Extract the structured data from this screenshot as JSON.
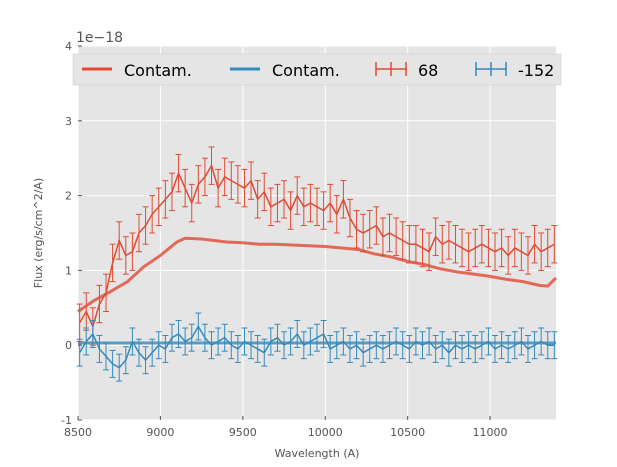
{
  "chart_data": {
    "type": "line",
    "title": "",
    "xlabel": "Wavelength (A)",
    "ylabel": "Flux (erg/s/cm^2/A)",
    "offset_text": "1e−18",
    "xlim": [
      8500,
      11400
    ],
    "ylim": [
      -1,
      4
    ],
    "x_ticks": [
      8500,
      9000,
      9500,
      10000,
      10500,
      11000
    ],
    "y_ticks": [
      -1,
      0,
      1,
      2,
      3,
      4
    ],
    "grid": true,
    "legend_position": "top",
    "colors": {
      "red": "#e24a33",
      "blue": "#348abd",
      "background": "#e5e5e5",
      "grid": "#ffffff"
    },
    "series": [
      {
        "name": "Contam.",
        "kind": "line",
        "color": "#e24a33",
        "x": [
          8500,
          8600,
          8700,
          8800,
          8900,
          9000,
          9100,
          9150,
          9250,
          9400,
          9500,
          9600,
          9700,
          9800,
          9900,
          10000,
          10100,
          10200,
          10300,
          10400,
          10500,
          10600,
          10700,
          10800,
          10900,
          11000,
          11100,
          11200,
          11300,
          11350,
          11400
        ],
        "y": [
          0.45,
          0.6,
          0.72,
          0.85,
          1.05,
          1.2,
          1.38,
          1.43,
          1.42,
          1.38,
          1.37,
          1.35,
          1.35,
          1.34,
          1.33,
          1.32,
          1.3,
          1.28,
          1.22,
          1.18,
          1.12,
          1.08,
          1.02,
          0.98,
          0.95,
          0.92,
          0.88,
          0.85,
          0.8,
          0.79,
          0.9
        ]
      },
      {
        "name": "Contam.",
        "kind": "line",
        "color": "#348abd",
        "x": [
          8500,
          9000,
          9500,
          10000,
          10500,
          11000,
          11400
        ],
        "y": [
          0.03,
          0.03,
          0.03,
          0.03,
          0.03,
          0.03,
          0.03
        ]
      },
      {
        "name": "68",
        "kind": "errorbar",
        "color": "#e24a33",
        "x": [
          8510,
          8550,
          8590,
          8630,
          8670,
          8710,
          8750,
          8790,
          8830,
          8870,
          8910,
          8950,
          8990,
          9030,
          9070,
          9110,
          9150,
          9190,
          9230,
          9270,
          9310,
          9350,
          9390,
          9430,
          9470,
          9510,
          9550,
          9590,
          9630,
          9670,
          9710,
          9750,
          9790,
          9830,
          9870,
          9910,
          9950,
          9990,
          10030,
          10070,
          10110,
          10150,
          10190,
          10230,
          10270,
          10310,
          10350,
          10390,
          10430,
          10470,
          10510,
          10550,
          10590,
          10630,
          10670,
          10710,
          10750,
          10790,
          10830,
          10870,
          10910,
          10950,
          10990,
          11030,
          11070,
          11110,
          11150,
          11190,
          11230,
          11270,
          11310,
          11350,
          11390
        ],
        "y": [
          0.3,
          0.45,
          0.25,
          0.55,
          0.7,
          1.1,
          1.4,
          1.2,
          1.25,
          1.5,
          1.6,
          1.75,
          1.85,
          1.95,
          2.05,
          2.3,
          2.1,
          1.9,
          2.15,
          2.25,
          2.4,
          2.1,
          2.25,
          2.2,
          2.15,
          2.1,
          2.2,
          1.95,
          2.05,
          1.85,
          1.9,
          1.95,
          1.8,
          2.0,
          1.85,
          1.9,
          1.85,
          1.8,
          1.9,
          1.75,
          1.95,
          1.7,
          1.55,
          1.5,
          1.55,
          1.6,
          1.45,
          1.5,
          1.45,
          1.4,
          1.35,
          1.35,
          1.3,
          1.25,
          1.45,
          1.35,
          1.4,
          1.35,
          1.3,
          1.25,
          1.3,
          1.35,
          1.3,
          1.25,
          1.3,
          1.2,
          1.3,
          1.25,
          1.2,
          1.35,
          1.25,
          1.3,
          1.35
        ],
        "yerr": 0.25
      },
      {
        "name": "-152",
        "kind": "errorbar",
        "color": "#348abd",
        "x": [
          8510,
          8550,
          8590,
          8630,
          8670,
          8710,
          8750,
          8790,
          8830,
          8870,
          8910,
          8950,
          8990,
          9030,
          9070,
          9110,
          9150,
          9190,
          9230,
          9270,
          9310,
          9350,
          9390,
          9430,
          9470,
          9510,
          9550,
          9590,
          9630,
          9670,
          9710,
          9750,
          9790,
          9830,
          9870,
          9910,
          9950,
          9990,
          10030,
          10070,
          10110,
          10150,
          10190,
          10230,
          10270,
          10310,
          10350,
          10390,
          10430,
          10470,
          10510,
          10550,
          10590,
          10630,
          10670,
          10710,
          10750,
          10790,
          10830,
          10870,
          10910,
          10950,
          10990,
          11030,
          11070,
          11110,
          11150,
          11190,
          11230,
          11270,
          11310,
          11350,
          11390
        ],
        "y": [
          -0.1,
          0.05,
          0.15,
          -0.05,
          -0.15,
          -0.25,
          -0.3,
          -0.2,
          0.05,
          -0.1,
          -0.2,
          -0.1,
          0.0,
          -0.05,
          0.1,
          0.15,
          0.05,
          0.1,
          0.25,
          0.1,
          0.0,
          0.05,
          0.1,
          0.0,
          -0.05,
          0.05,
          0.0,
          -0.05,
          -0.1,
          0.05,
          0.1,
          0.0,
          0.05,
          0.15,
          0.0,
          0.05,
          0.1,
          0.15,
          -0.05,
          0.0,
          0.05,
          -0.05,
          0.0,
          -0.1,
          -0.05,
          0.0,
          -0.05,
          0.0,
          0.05,
          0.0,
          -0.05,
          0.05,
          0.0,
          0.05,
          -0.05,
          0.0,
          -0.1,
          0.0,
          -0.05,
          0.0,
          -0.05,
          0.0,
          0.05,
          -0.05,
          0.0,
          -0.05,
          0.0,
          0.05,
          -0.05,
          0.0,
          0.05,
          0.0,
          0.0
        ],
        "yerr": 0.18
      }
    ]
  }
}
